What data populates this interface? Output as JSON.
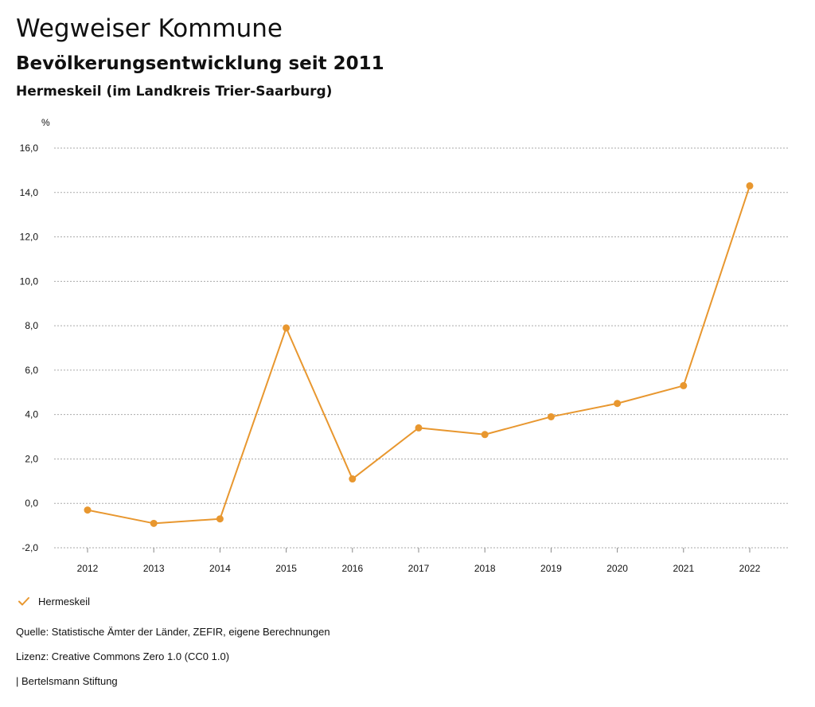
{
  "header": {
    "title": "Wegweiser Kommune",
    "subtitle": "Bevölkerungsentwicklung seit 2011",
    "region": "Hermeskeil (im Landkreis Trier-Saarburg)"
  },
  "chart_data": {
    "type": "line",
    "title": "Bevölkerungsentwicklung seit 2011",
    "ylabel": "%",
    "xlabel": "",
    "categories": [
      "2012",
      "2013",
      "2014",
      "2015",
      "2016",
      "2017",
      "2018",
      "2019",
      "2020",
      "2021",
      "2022"
    ],
    "series": [
      {
        "name": "Hermeskeil",
        "color": "#e8972f",
        "values": [
          -0.3,
          -0.9,
          -0.7,
          7.9,
          1.1,
          3.4,
          3.1,
          3.9,
          4.5,
          5.3,
          14.3
        ]
      }
    ],
    "ylim": [
      -2,
      16
    ],
    "yticks": [
      -2,
      0,
      2,
      4,
      6,
      8,
      10,
      12,
      14,
      16
    ],
    "ytick_labels": [
      "-2,0",
      "0,0",
      "2,0",
      "4,0",
      "6,0",
      "8,0",
      "10,0",
      "12,0",
      "14,0",
      "16,0"
    ],
    "grid": true,
    "legend": "bottom-left"
  },
  "legend": {
    "items": [
      {
        "label": "Hermeskeil",
        "icon": "check-icon",
        "color": "#e8972f"
      }
    ]
  },
  "footer": {
    "source": "Quelle: Statistische Ämter der Länder, ZEFIR, eigene Berechnungen",
    "license": "Lizenz: Creative Commons Zero 1.0 (CC0 1.0)",
    "brand": "| Bertelsmann Stiftung"
  }
}
